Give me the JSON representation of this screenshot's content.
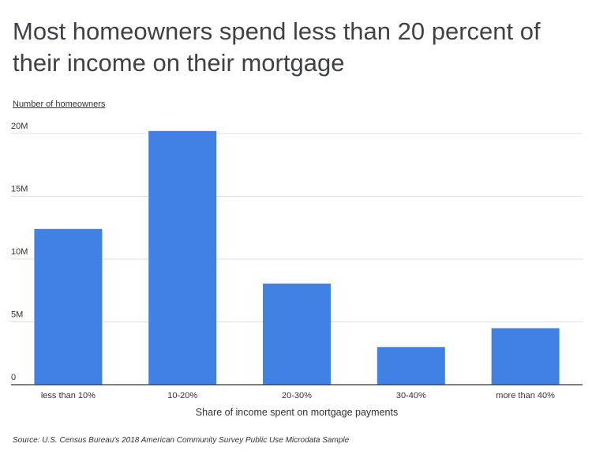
{
  "title": "Most homeowners spend less than 20 percent of their income on their mortgage",
  "source": "Source: U.S. Census Bureau's 2018 American Community Survey Public Use Microdata Sample",
  "colors": {
    "bar": "#4081e3",
    "grid": "#dddddd",
    "axis": "#333333"
  },
  "chart_data": {
    "type": "bar",
    "categories": [
      "less than 10%",
      "10-20%",
      "20-30%",
      "30-40%",
      "more than 40%"
    ],
    "values": [
      12400000,
      20200000,
      8050000,
      3000000,
      4500000
    ],
    "ylabel": "Number of homeowners",
    "xlabel": "Share of income spent on mortgage payments",
    "ylim": [
      0,
      20000000
    ],
    "yticks": [
      0,
      5000000,
      10000000,
      15000000,
      20000000
    ],
    "ytick_labels": [
      "0",
      "5M",
      "10M",
      "15M",
      "20M"
    ],
    "grid": true,
    "legend": "none"
  }
}
